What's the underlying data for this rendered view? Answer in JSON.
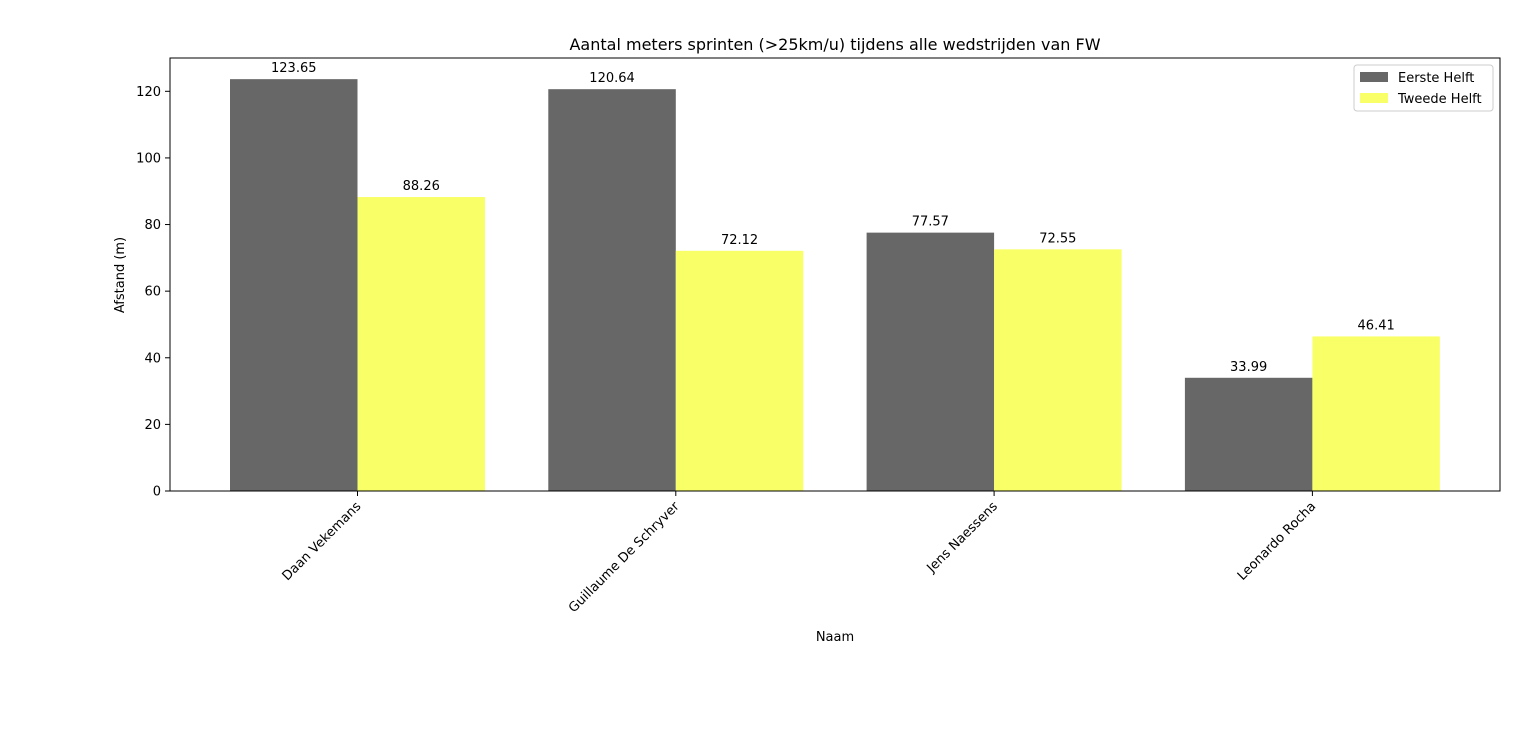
{
  "chart_data": {
    "type": "bar",
    "title": "Aantal meters sprinten (>25km/u) tijdens alle wedstrijden van FW",
    "xlabel": "Naam",
    "ylabel": "Afstand (m)",
    "categories": [
      "Daan Vekemans",
      "Guillaume De Schryver",
      "Jens Naessens",
      "Leonardo Rocha"
    ],
    "series": [
      {
        "name": "Eerste Helft",
        "color": "#676767",
        "values": [
          123.65,
          120.64,
          77.57,
          33.99
        ]
      },
      {
        "name": "Tweede Helft",
        "color": "#f9ff66",
        "values": [
          88.26,
          72.12,
          72.55,
          46.41
        ]
      }
    ],
    "ylim": [
      0,
      130
    ],
    "yticks": [
      0,
      20,
      40,
      60,
      80,
      100,
      120
    ],
    "grid": false,
    "legend_position": "top-right",
    "data_labels": true
  }
}
